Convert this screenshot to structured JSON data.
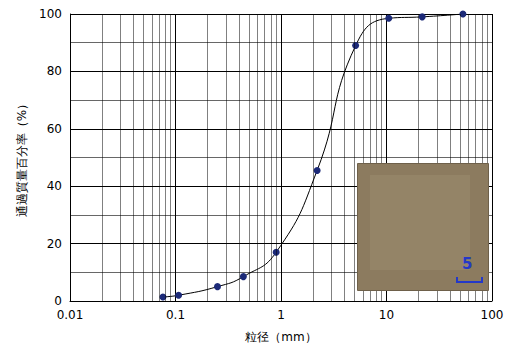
{
  "chart_data": {
    "type": "line",
    "x": [
      0.076,
      0.107,
      0.25,
      0.44,
      0.9,
      2.2,
      5.1,
      10.5,
      21.8,
      53
    ],
    "values": [
      1.4,
      2,
      5,
      8.5,
      17,
      45.5,
      89,
      98.5,
      99,
      100
    ],
    "xlabel": "粒径（mm）",
    "ylabel": "通過質量百分率（%）",
    "xlim": [
      0.01,
      100
    ],
    "ylim": [
      0,
      100
    ],
    "xticks": [
      0.01,
      0.1,
      1,
      10,
      100
    ],
    "yticks": [
      0,
      20,
      40,
      60,
      80,
      100
    ],
    "log": "x",
    "grid": true,
    "color": "#1c2a78",
    "marker": "circle",
    "annotations": [
      {
        "text": "5"
      }
    ]
  }
}
